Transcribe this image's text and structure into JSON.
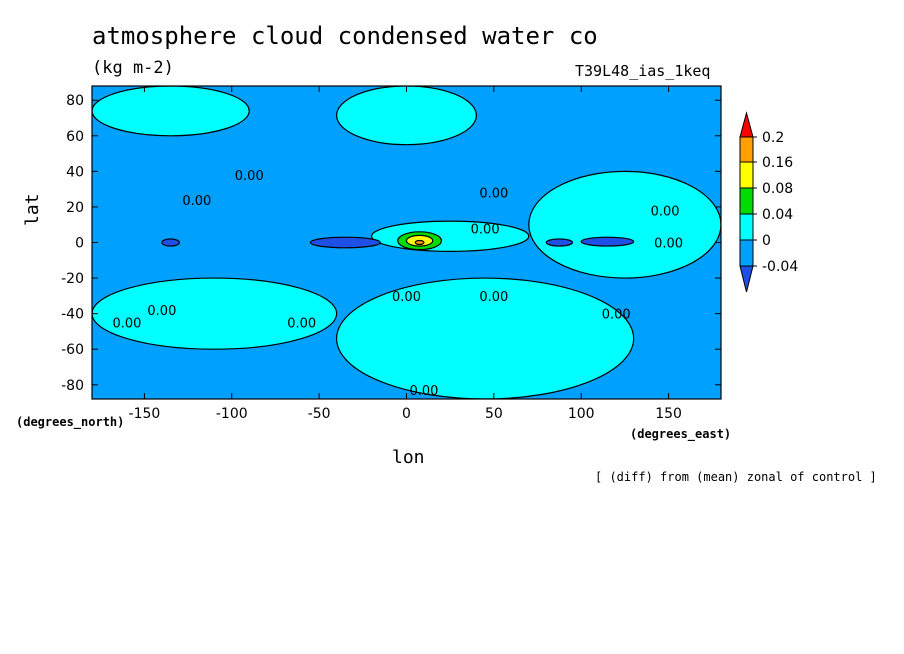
{
  "chart_data": {
    "type": "heatmap",
    "title": "atmosphere cloud condensed water co",
    "units": "(kg m-2)",
    "run_label": "T39L48_ias_1keq",
    "xlabel": "lon",
    "ylabel": "lat",
    "x_unit_label": "(degrees_east)",
    "y_unit_label": "(degrees_north)",
    "note": "[ (diff) from (mean) zonal of control ]",
    "xlim": [
      -180,
      180
    ],
    "ylim": [
      -88,
      88
    ],
    "x_ticks": [
      -150,
      -100,
      -50,
      0,
      50,
      100,
      150
    ],
    "y_ticks": [
      80,
      60,
      40,
      20,
      0,
      -20,
      -40,
      -60,
      -80
    ],
    "x_tick_labels": [
      "-150",
      "-100",
      "-50",
      "0",
      "50",
      "100",
      "150"
    ],
    "y_tick_labels": [
      "80",
      "60",
      "40",
      "20",
      "0",
      "-20",
      "-40",
      "-60",
      "-80"
    ],
    "contour_levels": [
      -0.04,
      0,
      0.04,
      0.08,
      0.16,
      0.2
    ],
    "colorbar_labels": [
      "0.2",
      "0.16",
      "0.08",
      "0.04",
      "0",
      "-0.04"
    ],
    "colors": {
      "below_-0.04": "#1e50e6",
      "-0.04_to_0": "#00a0ff",
      "0_to_0.04": "#00ffff",
      "0.04_to_0.08": "#00dc00",
      "0.08_to_0.16": "#ffff00",
      "0.16_to_0.2": "#ffa000",
      "above_0.2": "#ff0000"
    },
    "contour_labels": [
      {
        "text": "0.00",
        "lon": -90,
        "lat": 38
      },
      {
        "text": "0.00",
        "lon": -120,
        "lat": 24
      },
      {
        "text": "0.00",
        "lon": 50,
        "lat": 28
      },
      {
        "text": "0.00",
        "lon": 45,
        "lat": 8
      },
      {
        "text": "0.00",
        "lon": 148,
        "lat": 18
      },
      {
        "text": "0.00",
        "lon": 150,
        "lat": 0
      },
      {
        "text": "0.00",
        "lon": -140,
        "lat": -38
      },
      {
        "text": "0.00",
        "lon": -160,
        "lat": -45
      },
      {
        "text": "0.00",
        "lon": 0,
        "lat": -30
      },
      {
        "text": "0.00",
        "lon": -60,
        "lat": -45
      },
      {
        "text": "0.00",
        "lon": 50,
        "lat": -30
      },
      {
        "text": "0.00",
        "lon": 120,
        "lat": -40
      },
      {
        "text": "0.00",
        "lon": 10,
        "lat": -83
      }
    ],
    "features": [
      {
        "value_band": "0_to_0.04",
        "lon": [
          -180,
          -90
        ],
        "lat": [
          60,
          88
        ]
      },
      {
        "value_band": "0_to_0.04",
        "lon": [
          -40,
          40
        ],
        "lat": [
          55,
          88
        ]
      },
      {
        "value_band": "0_to_0.04",
        "lon": [
          70,
          180
        ],
        "lat": [
          -20,
          40
        ]
      },
      {
        "value_band": "0_to_0.04",
        "lon": [
          -20,
          70
        ],
        "lat": [
          -5,
          12
        ]
      },
      {
        "value_band": "0_to_0.04",
        "lon": [
          -180,
          -40
        ],
        "lat": [
          -60,
          -20
        ]
      },
      {
        "value_band": "0_to_0.04",
        "lon": [
          -40,
          130
        ],
        "lat": [
          -88,
          -20
        ]
      },
      {
        "value_band": "below_-0.04",
        "lon": [
          -55,
          -15
        ],
        "lat": [
          -3,
          3
        ]
      },
      {
        "value_band": "below_-0.04",
        "lon": [
          -140,
          -130
        ],
        "lat": [
          -2,
          2
        ]
      },
      {
        "value_band": "below_-0.04",
        "lon": [
          80,
          95
        ],
        "lat": [
          -2,
          2
        ]
      },
      {
        "value_band": "below_-0.04",
        "lon": [
          100,
          130
        ],
        "lat": [
          -2,
          3
        ]
      },
      {
        "value_band": "0.04_to_0.08",
        "lon": [
          -5,
          20
        ],
        "lat": [
          -4,
          6
        ]
      },
      {
        "value_band": "0.08_to_0.16",
        "lon": [
          0,
          15
        ],
        "lat": [
          -2,
          4
        ]
      },
      {
        "value_band": "0.16_to_0.2",
        "lon": [
          5,
          10
        ],
        "lat": [
          -1,
          1
        ]
      }
    ]
  }
}
